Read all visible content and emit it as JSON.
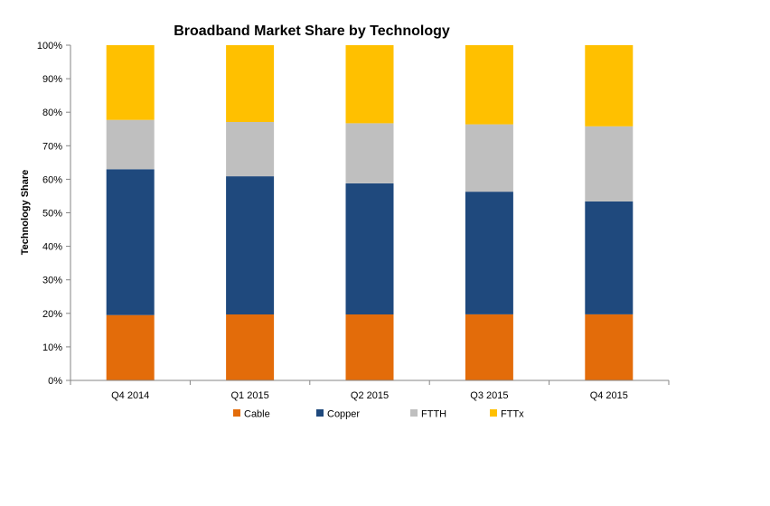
{
  "chart_data": {
    "type": "bar",
    "stacked": true,
    "title": "Broadband Market Share by Technology",
    "xlabel": "",
    "ylabel": "Technology Share",
    "ylim": [
      0,
      100
    ],
    "y_tick_format": "percent",
    "y_ticks": [
      "0%",
      "10%",
      "20%",
      "30%",
      "40%",
      "50%",
      "60%",
      "70%",
      "80%",
      "90%",
      "100%"
    ],
    "categories": [
      "Q4 2014",
      "Q1 2015",
      "Q2 2015",
      "Q3 2015",
      "Q4 2015"
    ],
    "grid": false,
    "legend_position": "bottom",
    "series": [
      {
        "name": "Cable",
        "color": "#E36C0A",
        "values": [
          19.5,
          19.7,
          19.7,
          19.7,
          19.7
        ]
      },
      {
        "name": "Copper",
        "color": "#1F497D",
        "values": [
          43.5,
          41.2,
          39.1,
          36.6,
          33.7
        ]
      },
      {
        "name": "FTTH",
        "color": "#BFBFBF",
        "values": [
          14.7,
          16.2,
          17.9,
          20.1,
          22.4
        ]
      },
      {
        "name": "FTTx",
        "color": "#FFC000",
        "values": [
          22.3,
          22.9,
          23.3,
          23.6,
          24.2
        ]
      }
    ]
  }
}
